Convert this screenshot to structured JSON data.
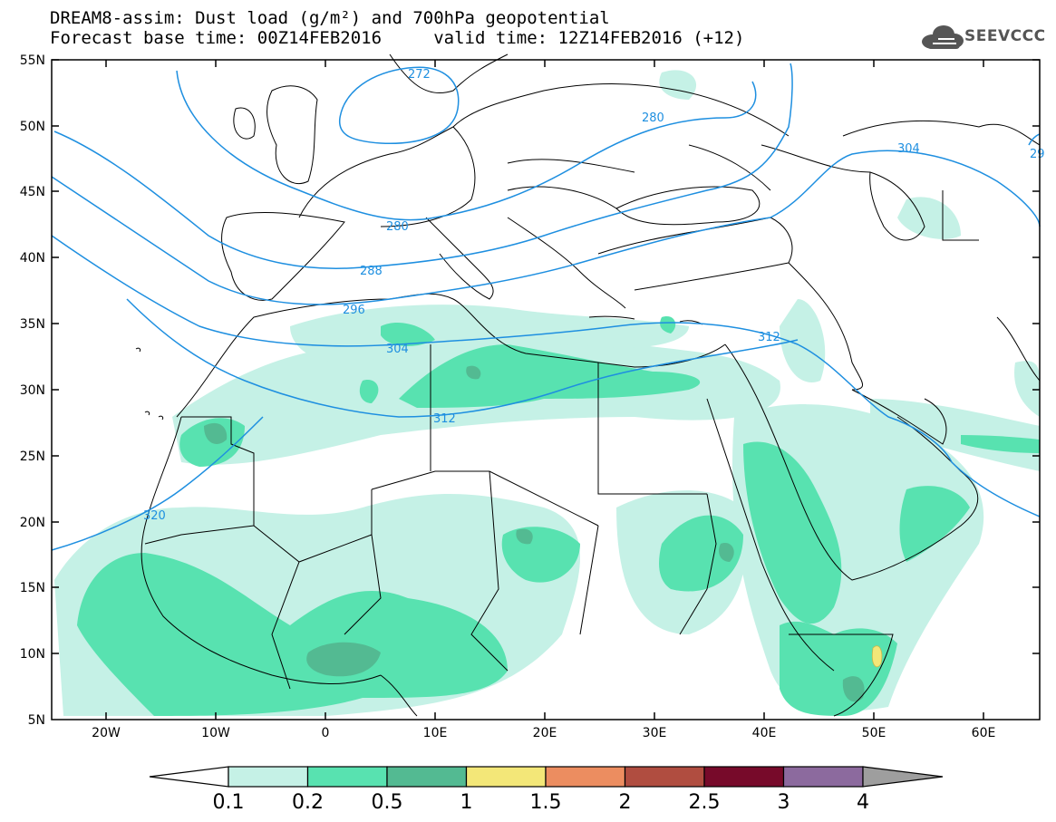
{
  "header": {
    "title_line1": "DREAM8-assim: Dust load (g/m²) and 700hPa geopotential",
    "title_line2": "Forecast base time: 00Z14FEB2016     valid time: 12Z14FEB2016 (+12)"
  },
  "logo": {
    "text": "SEEVCCC",
    "icon": "cloud-icon"
  },
  "map": {
    "lat_labels": [
      "55N",
      "50N",
      "45N",
      "40N",
      "35N",
      "30N",
      "25N",
      "20N",
      "15N",
      "10N",
      "5N"
    ],
    "lon_labels": [
      "20W",
      "10W",
      "0",
      "10E",
      "20E",
      "30E",
      "40E",
      "50E",
      "60E"
    ],
    "contour_labels": [
      "272",
      "280",
      "280",
      "288",
      "296",
      "304",
      "304",
      "312",
      "312",
      "320",
      "29"
    ]
  },
  "legend": {
    "ticks": [
      "0.1",
      "0.2",
      "0.5",
      "1",
      "1.5",
      "2",
      "2.5",
      "3",
      "4"
    ],
    "colors": [
      "#c5f1e6",
      "#58e2b0",
      "#53ba92",
      "#f3e778",
      "#ec8d60",
      "#b04d40",
      "#770a2a",
      "#8c6a9e"
    ],
    "low_color": "#ffffff",
    "high_color": "#9e9e9e"
  },
  "colors": {
    "contour": "#1e8fe0",
    "border": "#000000"
  }
}
